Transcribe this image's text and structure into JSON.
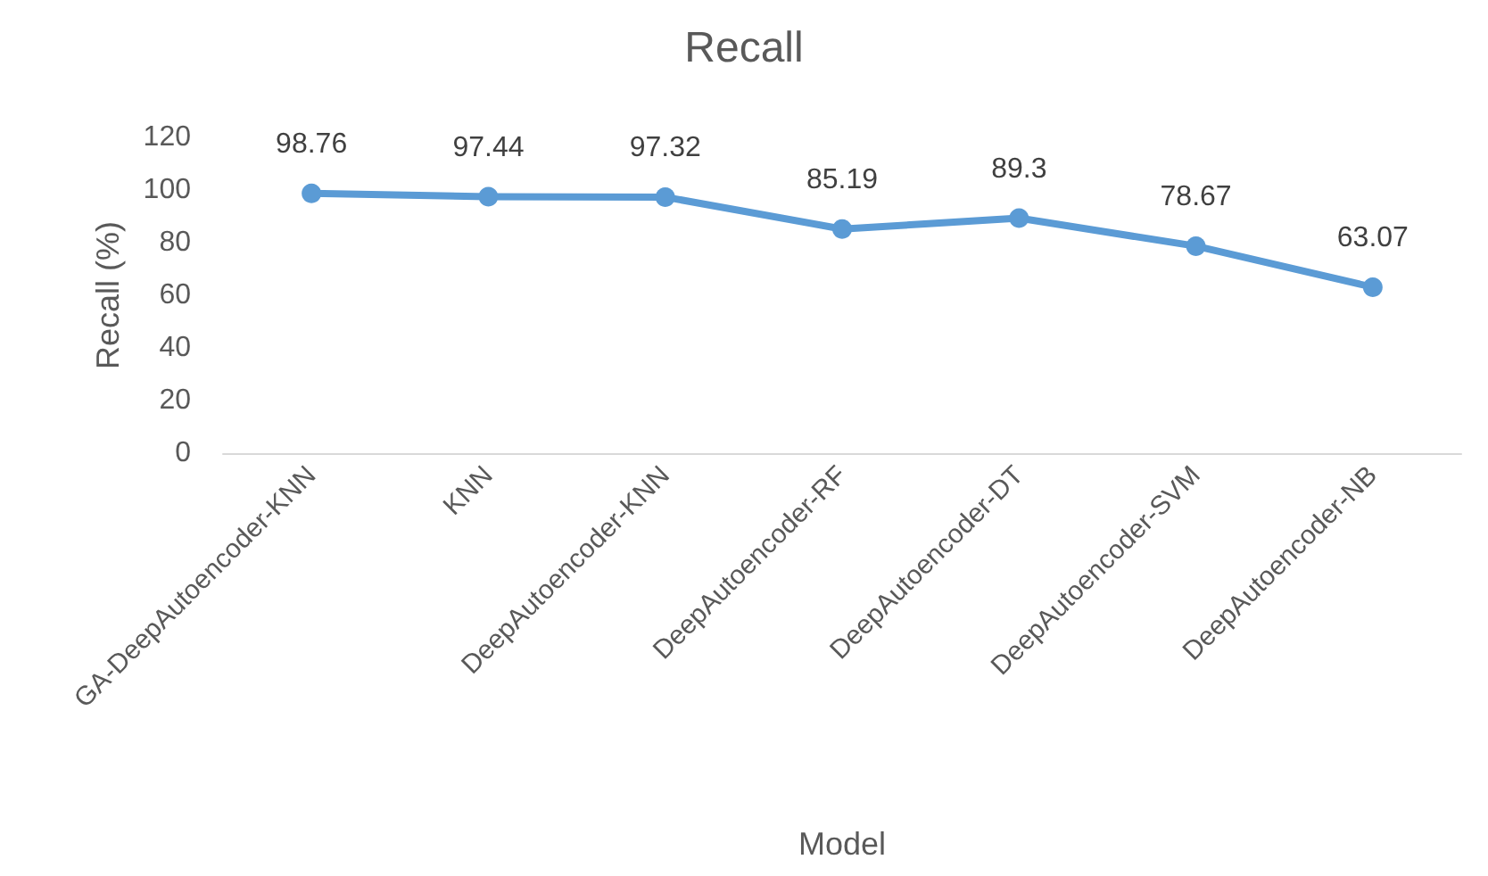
{
  "chart_data": {
    "type": "line",
    "title": "Recall",
    "xlabel": "Model",
    "ylabel": "Recall (%)",
    "categories": [
      "GA-DeepAutoencoder-KNN",
      "KNN",
      "DeepAutoencoder-KNN",
      "DeepAutoencoder-RF",
      "DeepAutoencoder-DT",
      "DeepAutoencoder-SVM",
      "DeepAutoencoder-NB"
    ],
    "series": [
      {
        "color": "#5b9bd5",
        "values": [
          98.76,
          97.44,
          97.32,
          85.19,
          89.3,
          78.67,
          63.07
        ]
      }
    ],
    "ylim": [
      0,
      120
    ],
    "yticks": [
      0,
      20,
      40,
      60,
      80,
      100,
      120
    ],
    "grid": false,
    "marker": "circle",
    "line_style": "solid",
    "data_labels": true
  }
}
